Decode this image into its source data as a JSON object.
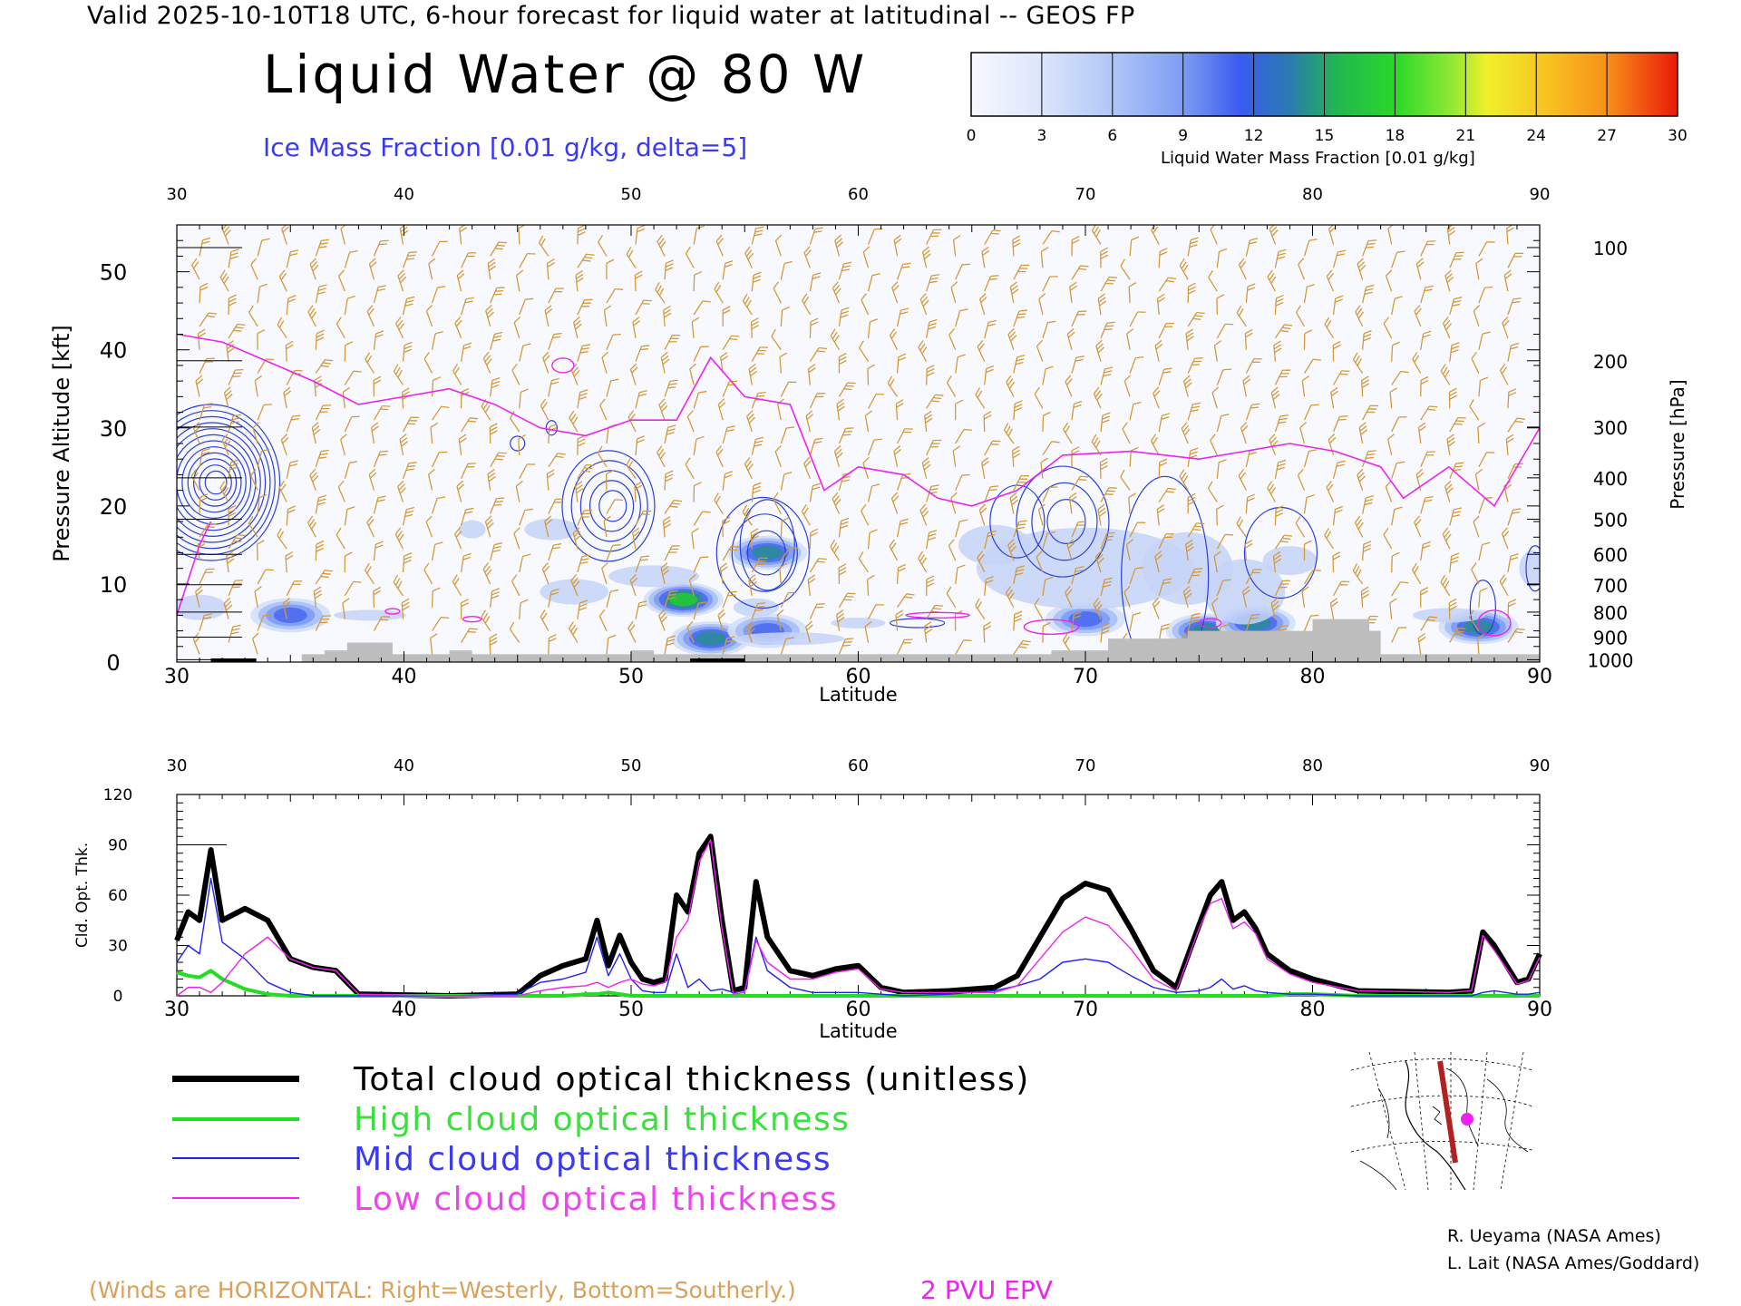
{
  "header": {
    "valid_title": "Valid 2025-10-10T18 UTC, 6-hour forecast for liquid water at latitudinal -- GEOS FP",
    "main_title": "Liquid Water @ 80 W",
    "ice_subtitle": "Ice Mass Fraction [0.01 g/kg, delta=5]"
  },
  "colorbar": {
    "ticks": [
      "0",
      "3",
      "6",
      "9",
      "12",
      "15",
      "18",
      "21",
      "24",
      "27",
      "30"
    ],
    "label": "Liquid Water Mass Fraction [0.01 g/kg]",
    "colors": [
      "#f4f6fd",
      "#d4e0fa",
      "#a8c0f7",
      "#7f9cf3",
      "#4d6cf0",
      "#2a8a9a",
      "#22c832",
      "#98e83a",
      "#f2ee2a",
      "#f8b818",
      "#f87018",
      "#e81a0a"
    ]
  },
  "legend": {
    "total": "Total cloud optical thickness (unitless)",
    "high": "High cloud optical thickness",
    "mid": "Mid cloud optical thickness",
    "low": "Low cloud optical thickness"
  },
  "colors": {
    "total": "#000000",
    "high": "#22dd22",
    "mid": "#2222ee",
    "low": "#ee22ee",
    "barb": "#d39a3c",
    "terrain": "#bdbdbd",
    "ice_contour": "#2a3fd8"
  },
  "credits": {
    "line1": "R. Ueyama (NASA Ames)",
    "line2": "L. Lait (NASA Ames/Goddard)"
  },
  "notes": {
    "winds": "(Winds are HORIZONTAL: Right=Westerly, Bottom=Southerly.)",
    "pvu": "2 PVU EPV"
  },
  "chart_data": [
    {
      "type": "heatmap",
      "title": "Liquid Water @ 80 W",
      "xlabel": "Latitude",
      "ylabel": "Pressure Altitude [kft]",
      "ylabel_right": "Pressure [hPa]",
      "xlim": [
        30,
        90
      ],
      "ylim": [
        0,
        56
      ],
      "x_ticks": [
        "30",
        "40",
        "50",
        "60",
        "70",
        "80",
        "90"
      ],
      "y_ticks": [
        "0",
        "10",
        "20",
        "30",
        "40",
        "50"
      ],
      "pressure_ticks": [
        "100",
        "200",
        "300",
        "400",
        "500",
        "600",
        "700",
        "800",
        "900",
        "1000"
      ],
      "pressure_tick_kft": [
        53.1,
        38.6,
        30.1,
        23.6,
        18.3,
        13.8,
        9.9,
        6.4,
        3.2,
        0.3
      ],
      "pv_2pvu_tropopause_kft": [
        [
          30,
          42
        ],
        [
          32,
          41
        ],
        [
          34,
          38.5
        ],
        [
          36,
          36
        ],
        [
          38,
          33
        ],
        [
          40,
          34
        ],
        [
          42,
          35
        ],
        [
          44,
          33
        ],
        [
          46,
          30
        ],
        [
          48,
          29
        ],
        [
          50,
          31
        ],
        [
          52,
          31
        ],
        [
          53.5,
          39
        ],
        [
          55,
          34
        ],
        [
          57,
          33
        ],
        [
          58.5,
          22
        ],
        [
          60,
          25
        ],
        [
          62,
          24
        ],
        [
          63.5,
          21
        ],
        [
          65,
          20
        ],
        [
          67,
          22
        ],
        [
          69,
          26.5
        ],
        [
          72,
          27
        ],
        [
          75,
          26
        ],
        [
          77,
          27
        ],
        [
          79,
          28
        ],
        [
          81,
          27
        ],
        [
          83,
          25
        ],
        [
          84,
          21
        ],
        [
          86,
          25
        ],
        [
          88,
          20
        ],
        [
          90,
          30
        ]
      ],
      "liquid_water_maxima": [
        {
          "lat": 35,
          "kft": 6,
          "value": 12
        },
        {
          "lat": 52.3,
          "kft": 8,
          "value": 18
        },
        {
          "lat": 53.5,
          "kft": 3,
          "value": 15
        },
        {
          "lat": 56,
          "kft": 4,
          "value": 12
        },
        {
          "lat": 56,
          "kft": 14,
          "value": 14
        },
        {
          "lat": 70,
          "kft": 5.5,
          "value": 12
        },
        {
          "lat": 75.3,
          "kft": 4,
          "value": 15
        },
        {
          "lat": 77.5,
          "kft": 5,
          "value": 15
        },
        {
          "lat": 87.3,
          "kft": 4.5,
          "value": 15
        }
      ],
      "ice_maxima": [
        {
          "lat": 31.5,
          "kft": 23,
          "value": 60
        },
        {
          "lat": 49,
          "kft": 20,
          "value": 25
        },
        {
          "lat": 55.8,
          "kft": 14,
          "value": 15
        },
        {
          "lat": 69,
          "kft": 18,
          "value": 15
        }
      ],
      "terrain_kft": [
        [
          30,
          0
        ],
        [
          35,
          0
        ],
        [
          35.5,
          1
        ],
        [
          36.5,
          1.5
        ],
        [
          37.5,
          2.5
        ],
        [
          39.5,
          1
        ],
        [
          42,
          1.5
        ],
        [
          43,
          1
        ],
        [
          50,
          1.5
        ],
        [
          51,
          1
        ],
        [
          60,
          1
        ],
        [
          66.5,
          1
        ],
        [
          68.5,
          1.5
        ],
        [
          71,
          3
        ],
        [
          73.5,
          3
        ],
        [
          74.5,
          4
        ],
        [
          78,
          4
        ],
        [
          80,
          5.5
        ],
        [
          82.5,
          4
        ],
        [
          83,
          1
        ],
        [
          90,
          1
        ]
      ]
    },
    {
      "type": "line",
      "xlabel": "Latitude",
      "ylabel": "Cld. Opt. Thk.",
      "xlim": [
        30,
        90
      ],
      "ylim": [
        0,
        120
      ],
      "x_ticks": [
        "30",
        "40",
        "50",
        "60",
        "70",
        "80",
        "90"
      ],
      "y_ticks": [
        "0",
        "30",
        "60",
        "90",
        "120"
      ],
      "x": [
        30,
        30.5,
        31,
        31.5,
        32,
        33,
        34,
        35,
        36,
        37,
        38,
        42,
        45,
        46,
        47,
        48,
        48.5,
        49,
        49.5,
        50,
        50.5,
        51,
        51.5,
        52,
        52.5,
        53,
        53.5,
        54,
        54.5,
        55,
        55.5,
        56,
        57,
        58,
        59,
        60,
        61,
        62,
        64,
        66,
        67,
        68,
        69,
        70,
        71,
        72,
        73,
        74,
        75,
        75.5,
        76,
        76.5,
        77,
        77.5,
        78,
        79,
        80,
        82,
        86,
        87,
        87.5,
        88,
        89,
        89.5,
        90
      ],
      "series": [
        {
          "name": "Total cloud optical thickness (unitless)",
          "values": [
            33,
            50,
            45,
            87,
            45,
            52,
            45,
            22,
            17,
            15,
            1,
            0,
            1,
            12,
            18,
            22,
            45,
            18,
            36,
            20,
            10,
            8,
            10,
            60,
            50,
            85,
            95,
            45,
            3,
            5,
            68,
            35,
            15,
            12,
            16,
            18,
            5,
            2,
            3,
            5,
            12,
            35,
            58,
            67,
            63,
            40,
            15,
            5,
            42,
            60,
            68,
            45,
            50,
            40,
            25,
            15,
            10,
            3,
            2,
            3,
            38,
            30,
            8,
            10,
            25
          ]
        },
        {
          "name": "High cloud optical thickness",
          "values": [
            14,
            12,
            11,
            15,
            10,
            4,
            1,
            0,
            0,
            0,
            0,
            0,
            0,
            0,
            0,
            1,
            1,
            2,
            1,
            0,
            0,
            0,
            0,
            0,
            0,
            0,
            0,
            0,
            0,
            0,
            0,
            0,
            0,
            0,
            0,
            0,
            0,
            0,
            0,
            0,
            0,
            0,
            0,
            0,
            0,
            0,
            0,
            0,
            0,
            0,
            0,
            0,
            0,
            0,
            0,
            1,
            1,
            0,
            0,
            0,
            0,
            0,
            0,
            0,
            0
          ]
        },
        {
          "name": "Mid cloud optical thickness",
          "values": [
            20,
            30,
            25,
            70,
            32,
            22,
            8,
            2,
            0,
            0,
            0,
            0,
            1,
            8,
            10,
            14,
            35,
            12,
            25,
            10,
            3,
            2,
            2,
            25,
            5,
            10,
            3,
            4,
            2,
            3,
            35,
            15,
            5,
            2,
            2,
            2,
            1,
            0,
            1,
            3,
            6,
            10,
            20,
            22,
            20,
            12,
            5,
            2,
            3,
            5,
            10,
            4,
            6,
            3,
            2,
            1,
            1,
            0,
            0,
            0,
            2,
            3,
            1,
            1,
            2
          ]
        },
        {
          "name": "Low cloud optical thickness",
          "values": [
            0,
            5,
            5,
            2,
            8,
            25,
            35,
            22,
            17,
            15,
            1,
            0,
            0,
            3,
            5,
            6,
            8,
            5,
            8,
            10,
            7,
            6,
            8,
            35,
            45,
            80,
            93,
            40,
            1,
            2,
            33,
            20,
            10,
            10,
            14,
            16,
            4,
            2,
            2,
            2,
            6,
            22,
            38,
            47,
            42,
            28,
            10,
            3,
            40,
            55,
            58,
            40,
            44,
            37,
            22,
            13,
            8,
            3,
            2,
            3,
            36,
            27,
            7,
            9,
            23
          ]
        }
      ]
    }
  ]
}
